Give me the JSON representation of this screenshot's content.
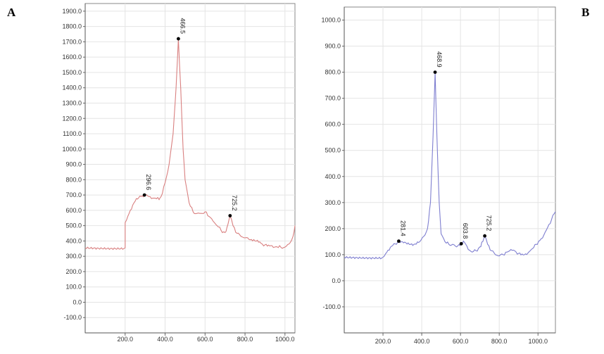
{
  "panels": [
    {
      "letter": "A"
    },
    {
      "letter": "B"
    }
  ],
  "chart_data": [
    {
      "type": "line",
      "title": "",
      "xlabel": "",
      "ylabel": "",
      "xlim": [
        0,
        1050
      ],
      "ylim": [
        -200,
        1950
      ],
      "grid": true,
      "color": "#d98080",
      "xticks": [
        200.0,
        400.0,
        600.0,
        800.0,
        1000.0
      ],
      "xtick_labels": [
        "200.0",
        "400.0",
        "600.0",
        "800.0",
        "1000.0"
      ],
      "yticks": [
        -100,
        0,
        100,
        200,
        300,
        400,
        500,
        600,
        700,
        800,
        900,
        1000,
        1100,
        1200,
        1300,
        1400,
        1500,
        1600,
        1700,
        1800,
        1900
      ],
      "ytick_labels": [
        "-100.0",
        "0.0",
        "100.0",
        "200.0",
        "300.0",
        "400.0",
        "500.0",
        "600.0",
        "700.0",
        "800.0",
        "900.0",
        "1000.0",
        "1100.0",
        "1200.0",
        "1300.0",
        "1400.0",
        "1500.0",
        "1600.0",
        "1700.0",
        "1800.0",
        "1900.0"
      ],
      "peaks": [
        {
          "x": 296.6,
          "y": 700,
          "label": "296.6"
        },
        {
          "x": 466.5,
          "y": 1720,
          "label": "466.5"
        },
        {
          "x": 725.2,
          "y": 565,
          "label": "725.2"
        }
      ],
      "series": [
        {
          "x": [
            0,
            200,
            200,
            220,
            250,
            280,
            296.6,
            320,
            350,
            370,
            380,
            400,
            420,
            440,
            455,
            466.5,
            478,
            490,
            500,
            520,
            540,
            560,
            580,
            600,
            620,
            640,
            660,
            680,
            700,
            710,
            725.2,
            740,
            760,
            780,
            800,
            820,
            850,
            880,
            900,
            930,
            960,
            980,
            1000,
            1020,
            1040,
            1050
          ],
          "y": [
            355,
            355,
            520,
            580,
            660,
            690,
            700,
            690,
            680,
            670,
            690,
            780,
            900,
            1100,
            1400,
            1720,
            1400,
            1000,
            800,
            650,
            590,
            580,
            580,
            590,
            560,
            530,
            500,
            470,
            455,
            490,
            565,
            500,
            450,
            430,
            420,
            410,
            400,
            385,
            375,
            370,
            362,
            358,
            360,
            380,
            430,
            500
          ]
        }
      ]
    },
    {
      "type": "line",
      "title": "",
      "xlabel": "",
      "ylabel": "",
      "xlim": [
        0,
        1090
      ],
      "ylim": [
        -200,
        1050
      ],
      "grid": true,
      "color": "#7f7fd0",
      "xticks": [
        200.0,
        400.0,
        600.0,
        800.0,
        1000.0
      ],
      "xtick_labels": [
        "200.0",
        "400.0",
        "600.0",
        "800.0",
        "1000.0"
      ],
      "yticks": [
        -100,
        0,
        100,
        200,
        300,
        400,
        500,
        600,
        700,
        800,
        900,
        1000
      ],
      "ytick_labels": [
        "-100.0",
        "0.0",
        "100.0",
        "200.0",
        "300.0",
        "400.0",
        "500.0",
        "600.0",
        "700.0",
        "800.0",
        "900.0",
        "1000.0"
      ],
      "peaks": [
        {
          "x": 281.4,
          "y": 152,
          "label": "281.4"
        },
        {
          "x": 468.9,
          "y": 800,
          "label": "468.9"
        },
        {
          "x": 603.8,
          "y": 142,
          "label": "603.8"
        },
        {
          "x": 725.2,
          "y": 172,
          "label": "725.2"
        }
      ],
      "series": [
        {
          "x": [
            0,
            200,
            220,
            250,
            281.4,
            300,
            330,
            360,
            390,
            410,
            430,
            445,
            458,
            468.9,
            478,
            490,
            500,
            520,
            540,
            560,
            580,
            603.8,
            620,
            640,
            660,
            680,
            700,
            715,
            725.2,
            740,
            760,
            780,
            800,
            820,
            840,
            860,
            880,
            900,
            930,
            960,
            990,
            1010,
            1030,
            1050,
            1070,
            1090
          ],
          "y": [
            90,
            90,
            110,
            135,
            152,
            150,
            145,
            140,
            150,
            170,
            200,
            300,
            550,
            800,
            560,
            300,
            180,
            150,
            140,
            140,
            130,
            142,
            148,
            120,
            110,
            115,
            130,
            150,
            172,
            140,
            115,
            100,
            95,
            100,
            110,
            120,
            115,
            105,
            100,
            115,
            140,
            155,
            175,
            205,
            235,
            265
          ]
        }
      ]
    }
  ]
}
